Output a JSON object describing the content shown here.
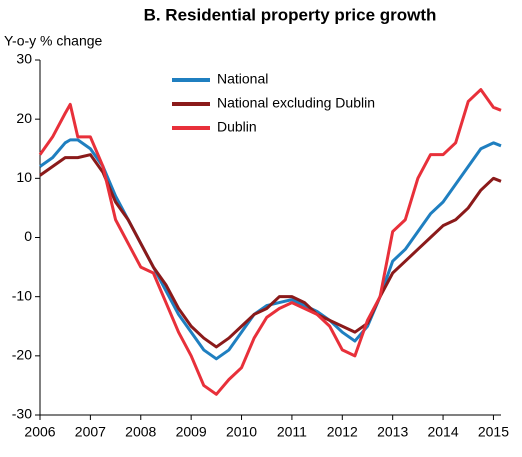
{
  "chart_data": {
    "type": "line",
    "title": "B. Residential property price growth",
    "y_label": "Y-o-y  % change",
    "x": [
      2006.0,
      2006.25,
      2006.5,
      2006.6,
      2006.75,
      2007.0,
      2007.25,
      2007.5,
      2007.75,
      2008.0,
      2008.25,
      2008.5,
      2008.75,
      2009.0,
      2009.25,
      2009.5,
      2009.75,
      2010.0,
      2010.25,
      2010.5,
      2010.75,
      2011.0,
      2011.25,
      2011.5,
      2011.75,
      2012.0,
      2012.25,
      2012.5,
      2012.75,
      2013.0,
      2013.25,
      2013.5,
      2013.75,
      2014.0,
      2014.25,
      2014.5,
      2014.75,
      2015.0,
      2015.15
    ],
    "series": [
      {
        "name": "National",
        "color": "#1f7fc0",
        "values": [
          12,
          13.5,
          16,
          16.5,
          16.5,
          15,
          12,
          7,
          3,
          -1,
          -5,
          -9,
          -13,
          -16,
          -19,
          -20.5,
          -19,
          -16,
          -13,
          -11.5,
          -11,
          -10.5,
          -11.5,
          -12.5,
          -14,
          -16,
          -17.5,
          -15,
          -10,
          -4,
          -2,
          1,
          4,
          6,
          9,
          12,
          15,
          16,
          15.5
        ]
      },
      {
        "name": "National excluding Dublin",
        "color": "#8b1a1a",
        "values": [
          10.5,
          12,
          13.5,
          13.5,
          13.5,
          14,
          11,
          6,
          3,
          -1,
          -5,
          -8,
          -12,
          -15,
          -17,
          -18.5,
          -17,
          -15,
          -13,
          -12,
          -10,
          -10,
          -11,
          -13,
          -14,
          -15,
          -16,
          -14.5,
          -10,
          -6,
          -4,
          -2,
          0,
          2,
          3,
          5,
          8,
          10,
          9.5
        ]
      },
      {
        "name": "Dublin",
        "color": "#e8303a",
        "values": [
          14,
          17,
          21,
          22.5,
          17,
          17,
          12,
          3,
          -1,
          -5,
          -6,
          -11,
          -16,
          -20,
          -25,
          -26.5,
          -24,
          -22,
          -17,
          -13.5,
          -12,
          -11,
          -12,
          -13,
          -15,
          -19,
          -20,
          -14,
          -10,
          1,
          3,
          10,
          14,
          14,
          16,
          23,
          25,
          22,
          21.5
        ]
      }
    ],
    "xlim": [
      2006,
      2015.15
    ],
    "xticks": [
      2006,
      2007,
      2008,
      2009,
      2010,
      2011,
      2012,
      2013,
      2014,
      2015
    ],
    "ylim": [
      -30,
      30
    ],
    "yticks": [
      -30,
      -20,
      -10,
      0,
      10,
      20,
      30
    ],
    "legend": "top"
  }
}
